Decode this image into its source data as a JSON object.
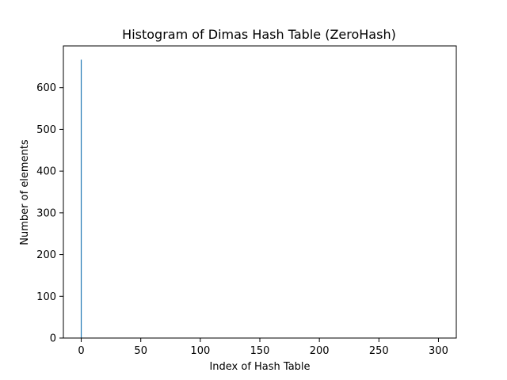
{
  "chart_data": {
    "type": "bar",
    "title": "Histogram of Dimas Hash Table (ZeroHash)",
    "xlabel": "Index of Hash Table",
    "ylabel": "Number of elements",
    "xlim": [
      -15,
      315
    ],
    "ylim": [
      0,
      700
    ],
    "x_ticks": [
      0,
      50,
      100,
      150,
      200,
      250,
      300
    ],
    "y_ticks": [
      0,
      100,
      200,
      300,
      400,
      500,
      600
    ],
    "bars": [
      {
        "x": 0,
        "value": 667
      }
    ],
    "bar_color": "#1f77b4",
    "grid": false,
    "legend": "none"
  }
}
